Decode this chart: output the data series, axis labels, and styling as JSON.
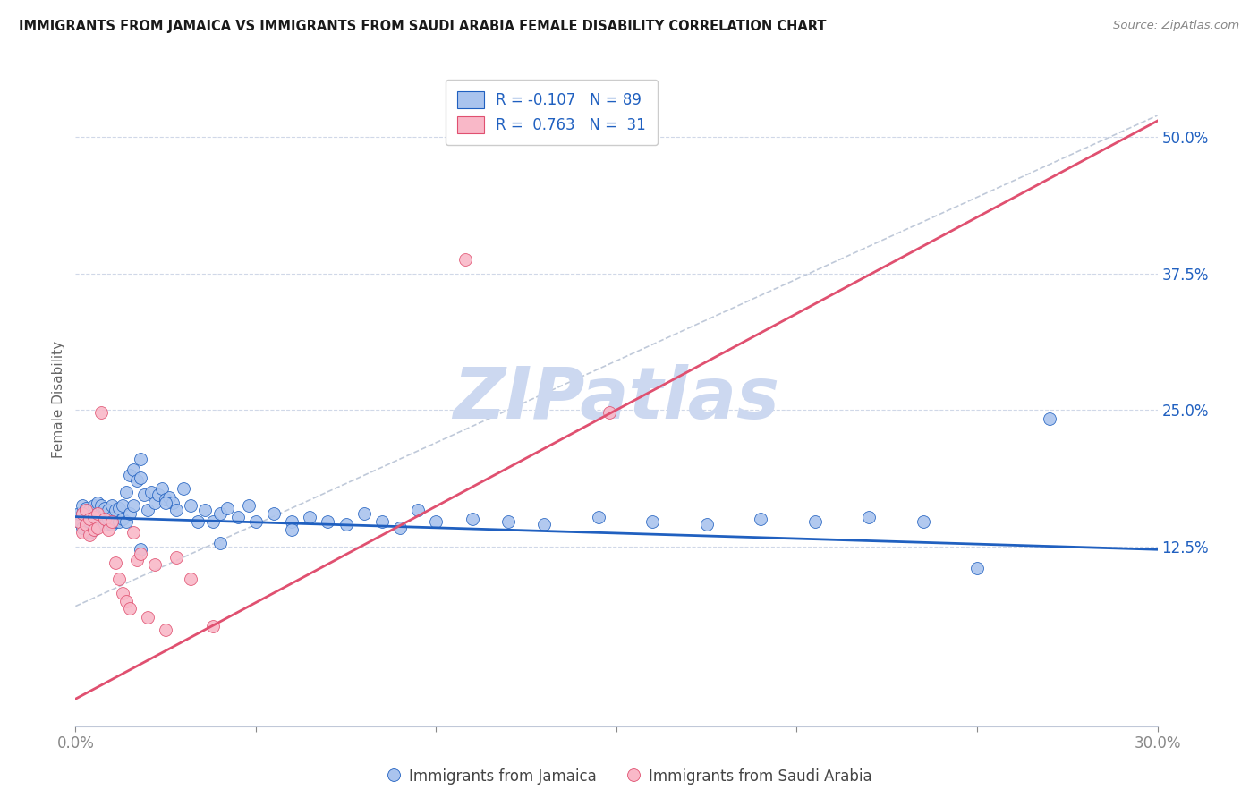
{
  "title": "IMMIGRANTS FROM JAMAICA VS IMMIGRANTS FROM SAUDI ARABIA FEMALE DISABILITY CORRELATION CHART",
  "source": "Source: ZipAtlas.com",
  "ylabel": "Female Disability",
  "xlim": [
    0.0,
    0.3
  ],
  "ylim": [
    -0.04,
    0.56
  ],
  "xtick_vals": [
    0.0,
    0.05,
    0.1,
    0.15,
    0.2,
    0.25,
    0.3
  ],
  "xtick_labels": [
    "0.0%",
    "",
    "",
    "",
    "",
    "",
    "30.0%"
  ],
  "ytick_vals": [
    0.125,
    0.25,
    0.375,
    0.5
  ],
  "ytick_labels": [
    "12.5%",
    "25.0%",
    "37.5%",
    "50.0%"
  ],
  "legend_r_jamaica": "-0.107",
  "legend_n_jamaica": "89",
  "legend_r_saudi": "0.763",
  "legend_n_saudi": "31",
  "color_jamaica": "#aac4ee",
  "color_saudi": "#f9b8c8",
  "trendline_color_jamaica": "#2060c0",
  "trendline_color_saudi": "#e05070",
  "watermark": "ZIPatlas",
  "watermark_color": "#ccd8f0",
  "background_color": "#ffffff",
  "grid_color": "#d0d8e8",
  "jamaica_trend_x": [
    0.0,
    0.3
  ],
  "jamaica_trend_y": [
    0.152,
    0.122
  ],
  "saudi_trend_x": [
    0.0,
    0.3
  ],
  "saudi_trend_y": [
    -0.015,
    0.515
  ],
  "dash_line_x": [
    0.0,
    0.3
  ],
  "dash_line_y": [
    0.07,
    0.52
  ],
  "jamaica_x": [
    0.001,
    0.001,
    0.002,
    0.002,
    0.002,
    0.003,
    0.003,
    0.003,
    0.004,
    0.004,
    0.004,
    0.005,
    0.005,
    0.005,
    0.006,
    0.006,
    0.006,
    0.007,
    0.007,
    0.007,
    0.008,
    0.008,
    0.008,
    0.009,
    0.009,
    0.01,
    0.01,
    0.01,
    0.011,
    0.011,
    0.012,
    0.012,
    0.013,
    0.013,
    0.014,
    0.014,
    0.015,
    0.015,
    0.016,
    0.016,
    0.017,
    0.018,
    0.018,
    0.019,
    0.02,
    0.021,
    0.022,
    0.023,
    0.024,
    0.025,
    0.026,
    0.027,
    0.028,
    0.03,
    0.032,
    0.034,
    0.036,
    0.038,
    0.04,
    0.042,
    0.045,
    0.048,
    0.05,
    0.055,
    0.06,
    0.065,
    0.07,
    0.075,
    0.08,
    0.085,
    0.09,
    0.095,
    0.1,
    0.11,
    0.12,
    0.13,
    0.145,
    0.16,
    0.175,
    0.19,
    0.205,
    0.22,
    0.235,
    0.25,
    0.06,
    0.04,
    0.025,
    0.018,
    0.27
  ],
  "jamaica_y": [
    0.148,
    0.155,
    0.142,
    0.155,
    0.162,
    0.145,
    0.155,
    0.16,
    0.138,
    0.148,
    0.158,
    0.14,
    0.152,
    0.162,
    0.145,
    0.155,
    0.165,
    0.148,
    0.155,
    0.162,
    0.145,
    0.155,
    0.16,
    0.15,
    0.158,
    0.145,
    0.152,
    0.162,
    0.148,
    0.158,
    0.148,
    0.16,
    0.15,
    0.162,
    0.148,
    0.175,
    0.155,
    0.19,
    0.162,
    0.195,
    0.185,
    0.188,
    0.205,
    0.172,
    0.158,
    0.175,
    0.165,
    0.172,
    0.178,
    0.168,
    0.17,
    0.165,
    0.158,
    0.178,
    0.162,
    0.148,
    0.158,
    0.148,
    0.155,
    0.16,
    0.152,
    0.162,
    0.148,
    0.155,
    0.148,
    0.152,
    0.148,
    0.145,
    0.155,
    0.148,
    0.142,
    0.158,
    0.148,
    0.15,
    0.148,
    0.145,
    0.152,
    0.148,
    0.145,
    0.15,
    0.148,
    0.152,
    0.148,
    0.105,
    0.14,
    0.128,
    0.165,
    0.122,
    0.242
  ],
  "saudi_x": [
    0.001,
    0.002,
    0.002,
    0.003,
    0.003,
    0.004,
    0.004,
    0.005,
    0.005,
    0.006,
    0.006,
    0.007,
    0.008,
    0.009,
    0.01,
    0.011,
    0.012,
    0.013,
    0.014,
    0.015,
    0.016,
    0.017,
    0.018,
    0.02,
    0.022,
    0.025,
    0.028,
    0.032,
    0.038,
    0.108,
    0.148
  ],
  "saudi_y": [
    0.148,
    0.138,
    0.155,
    0.145,
    0.158,
    0.135,
    0.15,
    0.14,
    0.152,
    0.142,
    0.155,
    0.248,
    0.15,
    0.14,
    0.148,
    0.11,
    0.095,
    0.082,
    0.075,
    0.068,
    0.138,
    0.112,
    0.118,
    0.06,
    0.108,
    0.048,
    0.115,
    0.095,
    0.052,
    0.388,
    0.248
  ]
}
